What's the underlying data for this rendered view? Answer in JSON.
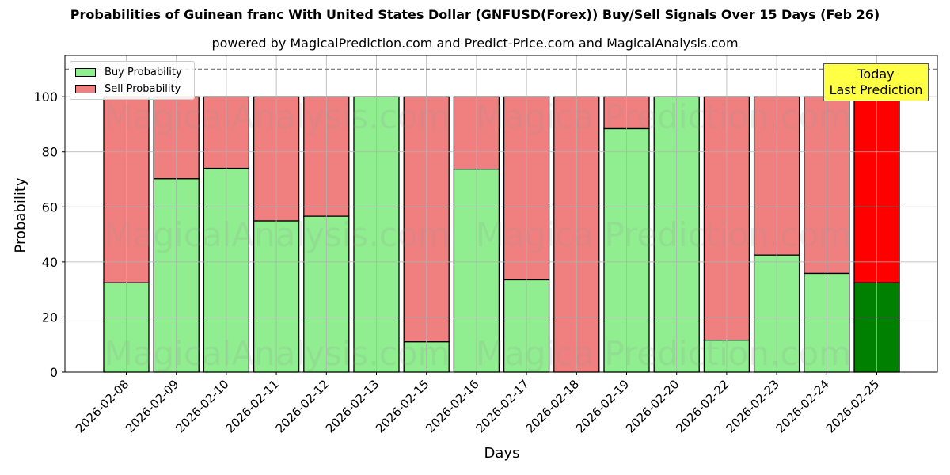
{
  "chart_data": {
    "type": "bar",
    "stacked": true,
    "title": "Probabilities of Guinean franc With United States Dollar (GNFUSD(Forex)) Buy/Sell Signals Over 15 Days (Feb 26)",
    "subtitle": "powered by MagicalPrediction.com and Predict-Price.com and MagicalAnalysis.com",
    "xlabel": "Days",
    "ylabel": "Probability",
    "ylim": [
      0,
      115
    ],
    "yticks": [
      0,
      20,
      40,
      60,
      80,
      100
    ],
    "grid": true,
    "legend_position": "upper left",
    "reference_line": {
      "y": 110,
      "style": "dashed",
      "color": "#808080"
    },
    "categories": [
      "2026-02-08",
      "2026-02-09",
      "2026-02-10",
      "2026-02-11",
      "2026-02-12",
      "2026-02-13",
      "2026-02-15",
      "2026-02-16",
      "2026-02-17",
      "2026-02-18",
      "2026-02-19",
      "2026-02-20",
      "2026-02-22",
      "2026-02-23",
      "2026-02-24",
      "2026-02-25"
    ],
    "series": [
      {
        "name": "Buy Probability",
        "color": "#90ee90",
        "values": [
          32.4,
          70.2,
          74.0,
          54.9,
          56.6,
          100.0,
          11.0,
          73.7,
          33.5,
          0.0,
          88.4,
          100.0,
          11.6,
          42.5,
          35.8,
          32.4
        ]
      },
      {
        "name": "Sell Probability",
        "color": "#f08080",
        "values": [
          67.6,
          29.8,
          26.0,
          45.1,
          43.4,
          0.0,
          89.0,
          26.3,
          66.5,
          100.0,
          11.6,
          0.0,
          88.4,
          57.5,
          64.2,
          67.6
        ]
      }
    ],
    "highlight": {
      "index": 15,
      "buy_color": "#008000",
      "sell_color": "#ff0000"
    },
    "annotation": {
      "text_line1": "Today",
      "text_line2": "Last Prediction",
      "background": "#ffff44"
    },
    "watermarks": [
      "MagicalAnalysis.com",
      "MagicalPrediction.com"
    ]
  },
  "legend": {
    "buy_label": "Buy Probability",
    "sell_label": "Sell Probability"
  },
  "colors": {
    "buy": "#90ee90",
    "sell": "#f08080",
    "buy_today": "#008000",
    "sell_today": "#ff0000",
    "grid": "#b0b0b0"
  }
}
